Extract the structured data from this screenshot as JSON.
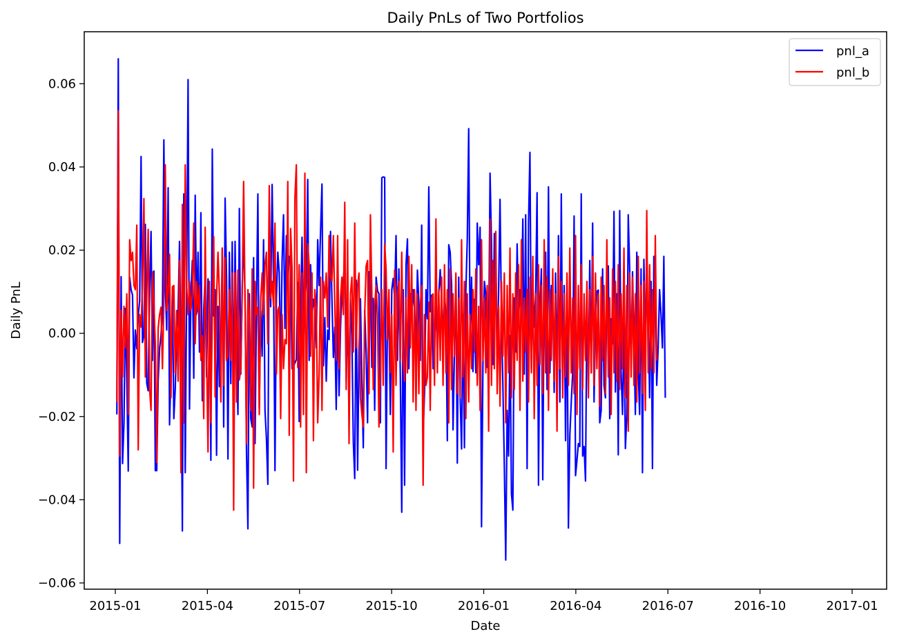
{
  "chart_data": {
    "type": "line",
    "title": "Daily PnLs of Two Portfolios",
    "xlabel": "Date",
    "ylabel": "Daily PnL",
    "x_range_months": [
      0,
      24
    ],
    "ylim": [
      -0.0615,
      0.0725
    ],
    "xticks": [
      {
        "label": "2015-01",
        "month": 0
      },
      {
        "label": "2015-04",
        "month": 3
      },
      {
        "label": "2015-07",
        "month": 6
      },
      {
        "label": "2015-10",
        "month": 9
      },
      {
        "label": "2016-01",
        "month": 12
      },
      {
        "label": "2016-04",
        "month": 15
      },
      {
        "label": "2016-07",
        "month": 18
      },
      {
        "label": "2016-10",
        "month": 21
      },
      {
        "label": "2017-01",
        "month": 24
      }
    ],
    "yticks": [
      {
        "label": "0.06",
        "value": 0.06
      },
      {
        "label": "0.04",
        "value": 0.04
      },
      {
        "label": "0.02",
        "value": 0.02
      },
      {
        "label": "0.00",
        "value": 0.0
      },
      {
        "label": "−0.02",
        "value": -0.02
      },
      {
        "label": "−0.04",
        "value": -0.04
      },
      {
        "label": "−0.06",
        "value": -0.06
      }
    ],
    "legend_position": "top-right",
    "x_start_month": 0.05,
    "x_step_months": 0.0464,
    "series": [
      {
        "name": "pnl_a",
        "color": "#0000ff",
        "values": [
          -0.0195,
          0.066,
          -0.0505,
          0.0136,
          -0.0313,
          -0.0216,
          0.006,
          -0.011,
          -0.0331,
          0.0135,
          0.0105,
          0.0092,
          -0.0107,
          0.0008,
          -0.0037,
          0.0042,
          0.0078,
          0.0425,
          -0.0022,
          -0.0005,
          0.0262,
          -0.012,
          -0.0138,
          0.0105,
          0.0245,
          -0.0065,
          0.015,
          -0.033,
          -0.033,
          -0.0115,
          -0.0036,
          -0.0004,
          0.0048,
          0.0465,
          0.0115,
          0.0008,
          0.035,
          -0.022,
          -0.0085,
          0.0105,
          -0.0205,
          -0.0133,
          -0.0008,
          0.0052,
          0.0221,
          -0.0045,
          -0.0475,
          0.0335,
          -0.0335,
          0.0115,
          0.061,
          -0.0182,
          0.0095,
          0.0175,
          -0.0108,
          0.0332,
          0.0046,
          0.0195,
          -0.0045,
          0.029,
          -0.0162,
          0.0058,
          0.0137,
          -0.0105,
          0.0131,
          0.0075,
          -0.0305,
          0.0443,
          0.0042,
          0.0105,
          -0.0293,
          0.0065,
          -0.0128,
          -0.0062,
          0.0205,
          -0.0225,
          0.0325,
          0.0135,
          -0.0302,
          0.0195,
          -0.0121,
          0.022,
          -0.0165,
          0.0221,
          -0.003,
          -0.0195,
          0.03,
          -0.0098,
          0.011,
          0.0232,
          0.0085,
          -0.028,
          -0.047,
          0.0095,
          -0.0205,
          -0.0225,
          0.0182,
          -0.0265,
          0.0062,
          0.0335,
          -0.018,
          0.0055,
          -0.0055,
          0.0225,
          -0.0185,
          -0.0252,
          -0.0363,
          0.0282,
          0.0064,
          0.0358,
          0.0125,
          -0.033,
          0.0085,
          0.0195,
          0.0145,
          -0.0085,
          0.0175,
          0.0285,
          0.0012,
          0.0235,
          0.012,
          0.0185,
          0.0185,
          -0.0085,
          -0.008,
          -0.0071,
          -0.0063,
          0.0122,
          -0.0212,
          0.0053,
          0.0231,
          -0.0028,
          0.0075,
          0.0128,
          0.037,
          -0.0065,
          0.0165,
          0.0045,
          0.0082,
          0.0055,
          -0.0035,
          0.0225,
          0.0115,
          0.0245,
          0.0359,
          -0.0078,
          0.0038,
          -0.0115,
          0.0008,
          -0.0015,
          0.0245,
          0.0082,
          -0.0058,
          0.0015,
          -0.0183,
          0.0085,
          -0.015,
          0.0012,
          0.0105,
          0.0125,
          0.0181,
          -0.0115,
          0.0065,
          -0.0195,
          0.0082,
          -0.0005,
          -0.0261,
          -0.0349,
          0.0128,
          -0.0329,
          -0.0045,
          0.0083,
          -0.0111,
          -0.0275,
          0.0055,
          -0.0045,
          -0.0215,
          0.0148,
          0.0135,
          -0.0082,
          0.0084,
          -0.0185,
          0.0135,
          0.0102,
          0.0095,
          -0.0215,
          0.0374,
          0.0376,
          0.0375,
          -0.0325,
          0.0055,
          0.0038,
          -0.0195,
          0.0105,
          0.0132,
          0.0085,
          0.0235,
          -0.0065,
          0.0155,
          -0.0102,
          -0.043,
          0.0105,
          -0.0365,
          0.0165,
          0.0227,
          -0.0085,
          0.0095,
          0.0042,
          0.0105,
          0.0055,
          -0.0045,
          0.0152,
          0.0075,
          -0.0065,
          0.026,
          -0.024,
          -0.0142,
          0.0105,
          0.0035,
          0.0352,
          0.0052,
          0.0092,
          -0.0085,
          -0.0035,
          0.0082,
          -0.0055,
          0.0095,
          0.0153,
          0.0082,
          -0.0015,
          0.0095,
          0.0045,
          -0.0258,
          0.0213,
          0.0195,
          0.0115,
          -0.0232,
          -0.0045,
          0.0122,
          -0.0312,
          0.0135,
          -0.0155,
          -0.0278,
          0.0045,
          -0.0275,
          0.0102,
          0.0225,
          0.0492,
          -0.0022,
          0.0135,
          -0.0092,
          0.0082,
          -0.0095,
          0.0265,
          0.0165,
          0.0255,
          -0.0465,
          -0.0075,
          0.0125,
          0.0095,
          -0.0082,
          -0.0025,
          0.0385,
          0.0215,
          -0.0075,
          0.024,
          0.0195,
          -0.0065,
          0.0105,
          0.0322,
          0.0035,
          -0.0125,
          -0.0315,
          -0.0545,
          -0.0185,
          -0.0295,
          -0.0005,
          -0.0385,
          -0.0425,
          0.0085,
          -0.0045,
          0.0215,
          0.0035,
          0.0105,
          0.0045,
          0.0275,
          -0.0098,
          0.0285,
          -0.0325,
          0.0265,
          0.0435,
          -0.0085,
          0.0125,
          0.0015,
          0.0095,
          0.0338,
          -0.0365,
          0.0052,
          0.0155,
          -0.0352,
          0.0125,
          0.0195,
          -0.0135,
          0.0352,
          -0.0095,
          0.0115,
          0.0095,
          -0.0142,
          0.0145,
          -0.0122,
          0.0235,
          -0.0165,
          0.0335,
          -0.0115,
          0.0115,
          -0.0258,
          0.0123,
          -0.0468,
          -0.0245,
          -0.0165,
          -0.0095,
          0.0282,
          -0.0342,
          -0.0305,
          -0.0265,
          -0.0272,
          0.0335,
          -0.0295,
          -0.0272,
          -0.0355,
          0.0065,
          -0.0105,
          0.0175,
          -0.0095,
          0.0265,
          -0.0165,
          0.0022,
          0.0101,
          0.0104,
          -0.0215,
          -0.0185,
          0.0155,
          -0.0125,
          -0.0155,
          0.0098,
          0.0162,
          -0.0205,
          0.0035,
          -0.0025,
          0.0293,
          -0.0141,
          0.0095,
          -0.0292,
          0.0295,
          -0.0095,
          -0.0195,
          0.0025,
          -0.0277,
          -0.0195,
          0.0285,
          0.0155,
          -0.0085,
          0.0148,
          -0.0012,
          -0.0195,
          0.0195,
          -0.0085,
          -0.0195,
          0.0155,
          -0.0335,
          0.0178,
          -0.0025,
          0.0092,
          0.0055,
          -0.0155,
          0.0125,
          -0.0325,
          0.0185,
          0.0115,
          -0.0125,
          -0.0035,
          0.0105,
          0.0045,
          -0.0035,
          0.0185,
          -0.0155
        ]
      },
      {
        "name": "pnl_b",
        "color": "#ff0000",
        "values": [
          -0.0165,
          0.0535,
          -0.0295,
          0.0055,
          -0.0105,
          0.0065,
          -0.0035,
          0.0095,
          -0.0195,
          0.0225,
          0.0175,
          0.0195,
          0.0115,
          0.0105,
          0.026,
          -0.028,
          0.0045,
          0.0015,
          0.0115,
          0.0324,
          -0.0105,
          0.0092,
          0.025,
          -0.0135,
          -0.0185,
          0.0148,
          0.0075,
          -0.0025,
          -0.031,
          0.0013,
          0.0045,
          0.0063,
          -0.0085,
          0.0075,
          0.0405,
          0.0055,
          0.0105,
          0.019,
          -0.0155,
          0.0112,
          0.0115,
          -0.0095,
          0.0055,
          -0.0115,
          0.0175,
          -0.0335,
          0.031,
          -0.0215,
          0.0405,
          0.0115,
          0.0045,
          0.0125,
          0.0055,
          0.0095,
          0.0265,
          -0.0025,
          0.0125,
          0.0052,
          0.0115,
          -0.0065,
          -0.0005,
          -0.0205,
          0.0255,
          -0.0045,
          -0.0285,
          0.0125,
          -0.0215,
          0.0045,
          0.0232,
          -0.0153,
          0.0085,
          0.0195,
          0.0092,
          -0.0165,
          0.0205,
          -0.0125,
          0.0182,
          -0.0065,
          -0.0055,
          0.0105,
          -0.0065,
          0.0145,
          -0.0425,
          0.0145,
          -0.0165,
          0.0152,
          -0.0112,
          -0.0085,
          0.0095,
          0.0365,
          0.0072,
          -0.0265,
          0.0105,
          0.0045,
          -0.0185,
          0.0155,
          -0.0372,
          0.0125,
          0.0045,
          0.0062,
          -0.0195,
          0.0085,
          0.0145,
          0.0045,
          0.0165,
          0.0195,
          -0.0025,
          0.0355,
          0.0085,
          0.0125,
          0.0065,
          0.0265,
          -0.0098,
          0.0055,
          0.0065,
          -0.0205,
          0.0045,
          -0.0085,
          -0.0015,
          -0.0025,
          0.0365,
          -0.0245,
          0.0252,
          0.0155,
          -0.0355,
          0.0325,
          0.0405,
          -0.0082,
          0.0165,
          -0.0225,
          0.0145,
          -0.0195,
          0.0385,
          -0.0335,
          0.0215,
          0.0165,
          -0.0055,
          0.0145,
          -0.0258,
          0.0105,
          0.0065,
          -0.0215,
          -0.0095,
          0.0135,
          -0.0185,
          0.0125,
          0.0085,
          0.0145,
          0.0015,
          0.0235,
          0.0135,
          0.0125,
          0.0235,
          0.0065,
          -0.0065,
          0.0235,
          -0.0085,
          0.0085,
          0.0135,
          0.0045,
          0.0315,
          -0.0135,
          0.0225,
          -0.0265,
          0.0095,
          0.0135,
          -0.0045,
          0.0265,
          -0.0035,
          0.0115,
          0.0145,
          -0.0155,
          -0.0195,
          -0.0225,
          0.0045,
          0.0162,
          0.0175,
          -0.0145,
          0.0285,
          0.0095,
          -0.0135,
          0.0065,
          0.0115,
          0.0045,
          -0.0225,
          -0.0085,
          0.0105,
          -0.0125,
          0.0215,
          0.0155,
          -0.0015,
          0.0105,
          -0.0095,
          0.0045,
          -0.0285,
          0.0152,
          -0.0125,
          0.0095,
          0.0125,
          -0.0065,
          0.0195,
          -0.0065,
          -0.0115,
          0.0085,
          -0.0095,
          0.0185,
          -0.0035,
          0.0165,
          -0.0165,
          0.0105,
          -0.0185,
          0.0095,
          -0.0145,
          0.0065,
          0.0115,
          -0.0365,
          0.0045,
          -0.0125,
          -0.0105,
          0.0075,
          -0.0185,
          0.0085,
          0.0095,
          -0.0125,
          0.0275,
          -0.0095,
          0.0105,
          -0.0065,
          0.0135,
          -0.0125,
          0.0165,
          -0.0095,
          0.0105,
          -0.0215,
          0.0155,
          -0.0135,
          0.0095,
          -0.0055,
          0.0145,
          -0.0145,
          0.0085,
          -0.0155,
          0.0225,
          -0.0105,
          0.0125,
          -0.0205,
          0.0095,
          -0.0165,
          0.0045,
          -0.0085,
          0.0105,
          -0.0045,
          0.0155,
          -0.0125,
          0.0065,
          -0.0185,
          0.0225,
          -0.0065,
          0.0085,
          -0.0095,
          0.0115,
          -0.0235,
          0.0275,
          -0.0125,
          0.0175,
          -0.0085,
          0.0245,
          -0.0145,
          0.0065,
          -0.0175,
          0.0125,
          -0.0055,
          0.0145,
          -0.0215,
          0.0115,
          -0.0095,
          0.0205,
          -0.0155,
          0.0095,
          -0.0135,
          0.0145,
          -0.0065,
          0.0165,
          -0.0185,
          0.0225,
          -0.0115,
          0.0085,
          -0.0045,
          0.0105,
          -0.0165,
          0.0135,
          -0.0095,
          0.0185,
          -0.0205,
          0.0095,
          -0.0125,
          0.0165,
          -0.0075,
          0.0115,
          -0.0145,
          0.0225,
          -0.0095,
          0.0135,
          -0.0185,
          0.0105,
          -0.0065,
          0.0155,
          -0.0115,
          0.0095,
          -0.0235,
          0.0185,
          -0.0085,
          0.0125,
          -0.0155,
          0.0095,
          -0.0105,
          0.0145,
          -0.0125,
          0.0205,
          -0.0095,
          0.0085,
          -0.0145,
          0.0235,
          -0.0195,
          0.0115,
          -0.0085,
          0.0165,
          -0.0135,
          0.0095,
          -0.0065,
          0.0125,
          -0.0155,
          0.0105,
          -0.0095,
          0.0185,
          -0.0125,
          0.0145,
          -0.0085,
          0.0095,
          -0.0175,
          0.0135,
          -0.0065,
          0.0115,
          -0.0145,
          0.0225,
          -0.0105,
          0.0085,
          -0.0195,
          0.0155,
          -0.0095,
          0.0125,
          -0.0115,
          0.0165,
          -0.0135,
          0.0095,
          -0.0085,
          0.0205,
          -0.0155,
          0.0115,
          -0.0235,
          0.0145,
          -0.0105,
          0.0135,
          -0.0125,
          0.0095,
          -0.0165,
          0.0185,
          -0.0095,
          0.0115,
          -0.0145,
          0.0125,
          -0.0185,
          0.0295,
          -0.0095,
          0.0165,
          -0.0085,
          0.0105,
          -0.0095,
          0.0235,
          -0.0065
        ]
      }
    ]
  }
}
